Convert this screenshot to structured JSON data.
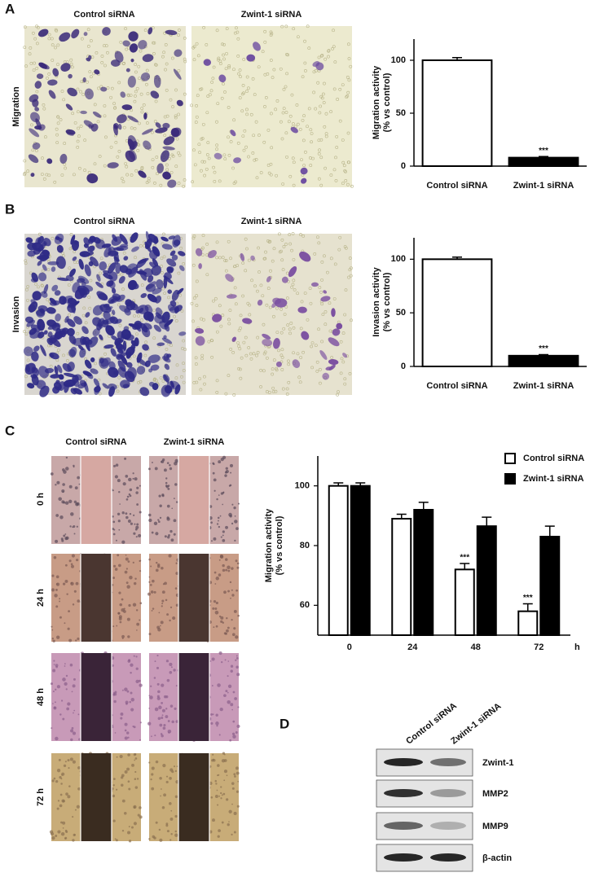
{
  "panel_labels": [
    "A",
    "B",
    "C",
    "D"
  ],
  "panel_a": {
    "row_label": "Migration",
    "image_titles": [
      "Control siRNA",
      "Zwint-1 siRNA"
    ]
  },
  "panel_b": {
    "row_label": "Invasion",
    "image_titles": [
      "Control siRNA",
      "Zwint-1 siRNA"
    ]
  },
  "panel_c": {
    "image_titles": [
      "Control siRNA",
      "Zwint-1 siRNA"
    ],
    "row_labels": [
      "0 h",
      "24 h",
      "48 h",
      "72 h"
    ]
  },
  "chart_data": [
    {
      "type": "bar",
      "ylabel": [
        "Migration activity",
        "(% vs control)"
      ],
      "categories": [
        "Control siRNA",
        "Zwint-1 siRNA"
      ],
      "values": [
        100,
        8
      ],
      "errors": [
        2.5,
        1
      ],
      "colors": [
        "#ffffff",
        "#000000"
      ],
      "ylim": [
        0,
        120
      ],
      "yticks": [
        0,
        50,
        100
      ],
      "annotations": [
        {
          "category": "Zwint-1 siRNA",
          "text": "***"
        }
      ]
    },
    {
      "type": "bar",
      "ylabel": [
        "Invasion activity",
        "(% vs control)"
      ],
      "categories": [
        "Control siRNA",
        "Zwint-1 siRNA"
      ],
      "values": [
        100,
        10
      ],
      "errors": [
        2,
        1
      ],
      "colors": [
        "#ffffff",
        "#000000"
      ],
      "ylim": [
        0,
        120
      ],
      "yticks": [
        0,
        50,
        100
      ],
      "annotations": [
        {
          "category": "Zwint-1 siRNA",
          "text": "***"
        }
      ]
    },
    {
      "type": "grouped-bar",
      "ylabel": [
        "Migration activity",
        "(% vs control)"
      ],
      "xlabel": "h",
      "categories": [
        "0",
        "24",
        "48",
        "72"
      ],
      "legend": "top-right",
      "series": [
        {
          "name": "Control siRNA",
          "color": "#ffffff",
          "values": [
            100,
            89,
            72,
            58
          ],
          "errors": [
            1,
            1.5,
            2,
            2.5
          ]
        },
        {
          "name": "Zwint-1 siRNA",
          "color": "#000000",
          "values": [
            100,
            92,
            86.5,
            83
          ],
          "errors": [
            1,
            2.5,
            3,
            3.5
          ]
        }
      ],
      "ylim": [
        50,
        110
      ],
      "yticks": [
        60,
        80,
        100
      ],
      "annotations": [
        {
          "series": "Control siRNA",
          "category": "48",
          "text": "***"
        },
        {
          "series": "Control siRNA",
          "category": "72",
          "text": "***"
        }
      ]
    }
  ],
  "blot": {
    "lanes": [
      "Control siRNA",
      "Zwint-1 siRNA"
    ],
    "bands": [
      "Zwint-1",
      "MMP2",
      "MMP9",
      "β-actin"
    ]
  }
}
